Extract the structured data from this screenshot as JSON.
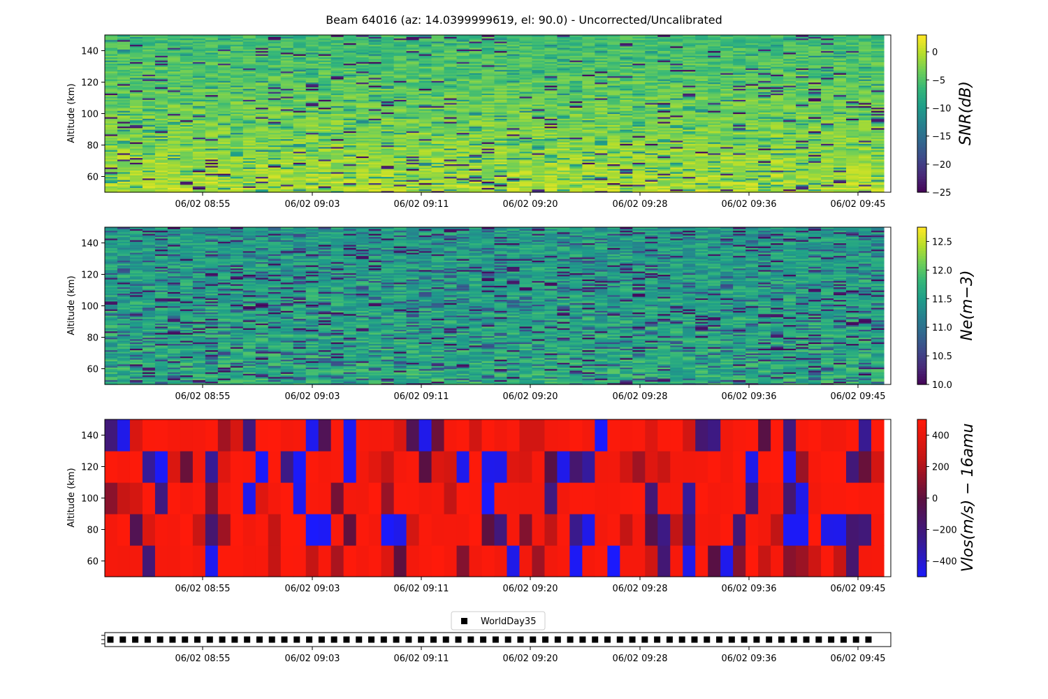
{
  "title": "Beam 64016 (az: 14.0399999619, el: 90.0) - Uncorrected/Uncalibrated",
  "chart_data": [
    {
      "type": "heatmap",
      "name": "snr",
      "ylabel": "Altitude (km)",
      "ylim": [
        50,
        150
      ],
      "y_ticks": [
        "60",
        "80",
        "100",
        "120",
        "140"
      ],
      "x_ticks": [
        "06/02 08:55",
        "06/02 09:03",
        "06/02 09:11",
        "06/02 09:20",
        "06/02 09:28",
        "06/02 09:36",
        "06/02 09:45"
      ],
      "colorbar_label": "SNR(dB)",
      "colorbar_range": [
        -25,
        3
      ],
      "colorbar_ticks": [
        "0",
        "−5",
        "−10",
        "−15",
        "−20",
        "−25"
      ],
      "colormap": "viridis"
    },
    {
      "type": "heatmap",
      "name": "ne",
      "ylabel": "Altitude (km)",
      "ylim": [
        50,
        150
      ],
      "y_ticks": [
        "60",
        "80",
        "100",
        "120",
        "140"
      ],
      "x_ticks": [
        "06/02 08:55",
        "06/02 09:03",
        "06/02 09:11",
        "06/02 09:20",
        "06/02 09:28",
        "06/02 09:36",
        "06/02 09:45"
      ],
      "colorbar_label": "Ne(m−3)",
      "colorbar_range": [
        10.0,
        12.75
      ],
      "colorbar_ticks": [
        "12.5",
        "12.0",
        "11.5",
        "11.0",
        "10.5",
        "10.0"
      ],
      "colormap": "viridis"
    },
    {
      "type": "heatmap",
      "name": "vlos",
      "ylabel": "Altitude (km)",
      "ylim": [
        50,
        150
      ],
      "y_ticks": [
        "60",
        "80",
        "100",
        "120",
        "140"
      ],
      "x_ticks": [
        "06/02 08:55",
        "06/02 09:03",
        "06/02 09:11",
        "06/02 09:20",
        "06/02 09:28",
        "06/02 09:36",
        "06/02 09:45"
      ],
      "colorbar_label": "Vlos(m/s) − 16amu",
      "colorbar_range": [
        -500,
        500
      ],
      "colorbar_ticks": [
        "400",
        "200",
        "0",
        "−200",
        "−400"
      ],
      "colormap": "blue-red"
    },
    {
      "type": "scatter",
      "name": "mode",
      "legend": "WorldDay35",
      "legend_position": "top-center",
      "x_ticks": [
        "06/02 08:55",
        "06/02 09:03",
        "06/02 09:11",
        "06/02 09:20",
        "06/02 09:28",
        "06/02 09:36",
        "06/02 09:45"
      ],
      "marker_count": 62,
      "color": "#000000"
    }
  ],
  "colors": {
    "viridis": [
      "#440154",
      "#482878",
      "#3e4989",
      "#31688e",
      "#26828e",
      "#1f9e89",
      "#35b779",
      "#6ece58",
      "#b5de2b",
      "#fde725"
    ],
    "blue_red": [
      "#1a1aff",
      "#3a1a8a",
      "#5a1040",
      "#c01515",
      "#ff1a0a"
    ]
  }
}
